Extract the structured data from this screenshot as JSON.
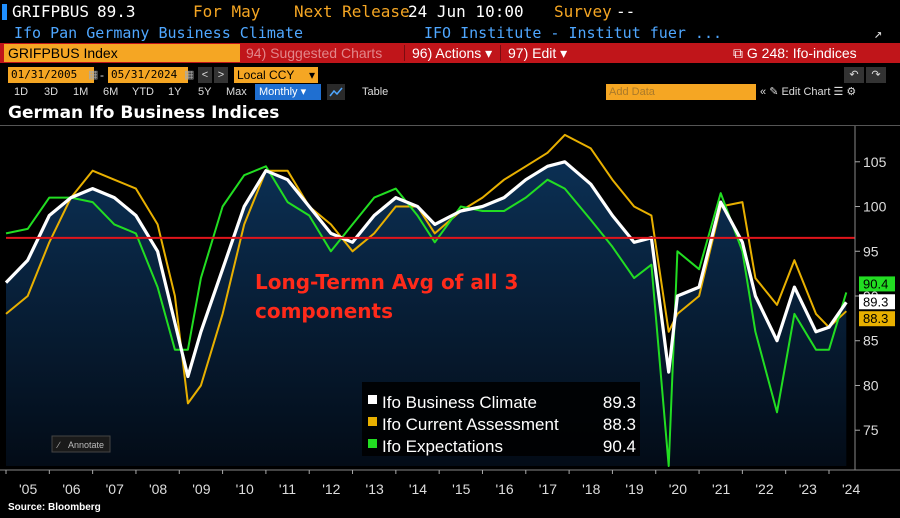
{
  "header": {
    "ticker": "GRIFPBUS",
    "price": "89.3",
    "for_label": "For May",
    "next_release_label": "Next Release",
    "next_release_value": "24 Jun 10:00",
    "survey_label": "Survey",
    "survey_value": "--",
    "security_name": "Ifo Pan Germany Business Climate",
    "source_name": "IFO Institute - Institut fuer ..."
  },
  "toolbar": {
    "index_label": "GRIFPBUS Index",
    "suggested_label": "Suggested Charts",
    "suggested_code": "94)",
    "actions_label": "Actions",
    "actions_code": "96)",
    "edit_label": "Edit",
    "edit_code": "97)",
    "chart_label": "G 248: Ifo-indices"
  },
  "controls": {
    "start_date": "01/31/2005",
    "end_date": "05/31/2024",
    "currency": "Local CCY",
    "periods": [
      "1D",
      "3D",
      "1M",
      "6M",
      "YTD",
      "1Y",
      "5Y",
      "Max"
    ],
    "frequency": "Monthly",
    "table_label": "Table",
    "add_data_placeholder": "Add Data",
    "edit_chart_label": "Edit Chart"
  },
  "chart_title": "German Ifo Business Indices",
  "annotate_label": "Annotate",
  "source_text": "Source: Bloomberg",
  "colors": {
    "climate": "#ffffff",
    "current": "#e8b000",
    "expectations": "#22dd22",
    "avg_line": "#e0151b",
    "annotation_text": "#ff2a1a",
    "plot_bg_top": "#0a2a4a"
  },
  "chart_data": {
    "type": "line",
    "title": "German Ifo Business Indices",
    "x_tick_labels": [
      "'05",
      "'06",
      "'07",
      "'08",
      "'09",
      "'10",
      "'11",
      "'12",
      "'13",
      "'14",
      "'15",
      "'16",
      "'17",
      "'18",
      "'19",
      "'20",
      "'21",
      "'22",
      "'23",
      "'24"
    ],
    "ylim": [
      71,
      109
    ],
    "y_ticks": [
      75,
      80,
      85,
      90,
      95,
      100,
      105
    ],
    "x": [
      2005.0,
      2005.5,
      2006.0,
      2006.5,
      2007.0,
      2007.5,
      2008.0,
      2008.5,
      2008.9,
      2009.2,
      2009.5,
      2010.0,
      2010.5,
      2011.0,
      2011.5,
      2012.0,
      2012.5,
      2013.0,
      2013.5,
      2014.0,
      2014.5,
      2014.9,
      2015.5,
      2016.0,
      2016.5,
      2017.0,
      2017.5,
      2017.9,
      2018.5,
      2019.0,
      2019.5,
      2019.9,
      2020.3,
      2020.5,
      2021.0,
      2021.5,
      2022.0,
      2022.3,
      2022.8,
      2023.2,
      2023.7,
      2024.0,
      2024.4
    ],
    "series": [
      {
        "name": "Ifo Business Climate",
        "last": "89.3",
        "values": [
          91.5,
          94,
          99,
          101,
          102,
          101,
          99,
          95,
          87,
          81,
          86,
          93,
          100,
          104,
          103,
          100,
          97,
          96,
          99,
          101,
          100,
          98,
          99.5,
          100,
          101,
          103,
          104.5,
          105,
          102.5,
          99,
          96,
          96.5,
          81.5,
          90,
          91,
          100.5,
          96,
          90,
          85,
          91,
          86,
          86.5,
          89.3
        ]
      },
      {
        "name": "Ifo Current Assessment",
        "last": "88.3",
        "values": [
          88,
          90,
          96,
          101,
          104,
          103,
          102,
          98,
          90,
          78,
          80,
          88,
          98,
          104,
          104,
          100,
          98,
          95,
          97,
          100,
          100,
          97,
          99.5,
          101,
          103,
          104.5,
          106,
          108,
          106.5,
          103,
          100,
          99,
          86,
          88,
          90,
          100,
          100.5,
          92,
          89,
          94,
          88,
          86.5,
          88.3
        ]
      },
      {
        "name": "Ifo Expectations",
        "last": "90.4",
        "values": [
          97,
          97.5,
          101,
          101,
          100.5,
          98,
          97,
          91,
          84,
          84,
          92,
          100,
          103.5,
          104.5,
          100.5,
          99,
          95,
          98,
          101,
          102,
          99,
          96,
          100,
          99.5,
          99.5,
          101,
          103,
          102,
          98.5,
          95.5,
          92,
          93.5,
          71,
          95,
          93,
          101.5,
          95,
          86,
          77,
          88,
          84,
          84,
          90.4
        ]
      }
    ],
    "avg_line": {
      "value": 96.5,
      "label": "Long-Termn Avg of all 3 components"
    },
    "legend_position": "bottom-right"
  }
}
